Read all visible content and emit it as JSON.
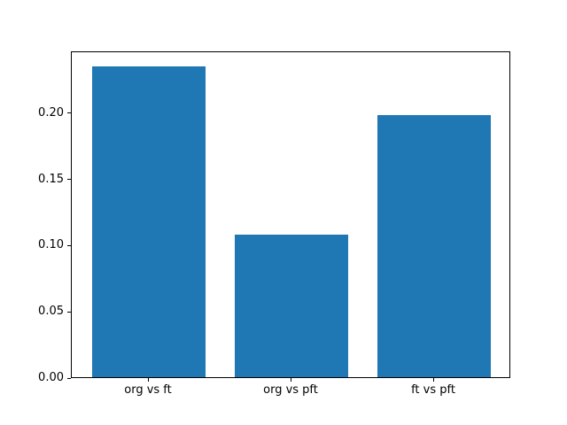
{
  "figure": {
    "background_color": "#ffffff",
    "frame_color": "#000000",
    "text_color": "#000000"
  },
  "chart_data": {
    "type": "bar",
    "title": "",
    "xlabel": "",
    "ylabel": "",
    "categories": [
      "org vs ft",
      "org vs pft",
      "ft vs pft"
    ],
    "values": [
      0.235,
      0.108,
      0.198
    ],
    "bar_color": "#1f77b4",
    "bar_width_fraction": 0.8,
    "xlim": [
      -0.54,
      2.54
    ],
    "ylim": [
      0,
      0.2467
    ],
    "yticks": [
      0.0,
      0.05,
      0.1,
      0.15,
      0.2
    ],
    "ytick_labels": [
      "0.00",
      "0.05",
      "0.10",
      "0.15",
      "0.20"
    ],
    "grid": false,
    "legend": null
  }
}
